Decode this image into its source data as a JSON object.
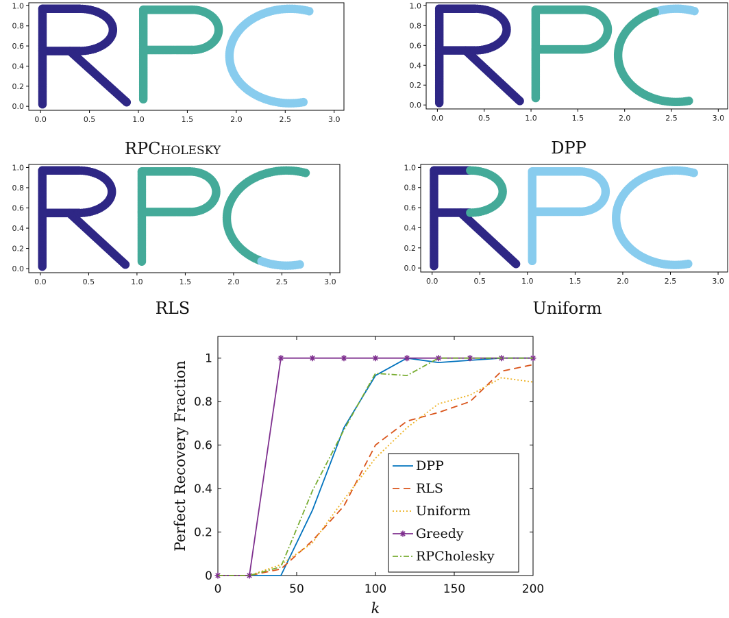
{
  "colors": {
    "cluster1": "#2e2785",
    "cluster2": "#44aa99",
    "cluster3": "#88ccee",
    "axis": "#000000"
  },
  "chart_data": [
    {
      "type": "scatter",
      "id": "rpcholesky",
      "title": "RPCholesky",
      "xlim": [
        -0.12,
        3.1
      ],
      "ylim": [
        -0.04,
        1.03
      ],
      "xticks": [
        "0.0",
        "0.5",
        "1.0",
        "1.5",
        "2.0",
        "2.5",
        "3.0"
      ],
      "yticks": [
        "0.0",
        "0.2",
        "0.4",
        "0.6",
        "0.8",
        "1.0"
      ],
      "assignment": {
        "R": "cluster1",
        "P": "cluster2",
        "C": "cluster3",
        "P_split_y": null,
        "C_split_t": null
      }
    },
    {
      "type": "scatter",
      "id": "dpp",
      "title": "DPP",
      "xlim": [
        -0.12,
        3.1
      ],
      "ylim": [
        -0.04,
        1.03
      ],
      "xticks": [
        "0.0",
        "0.5",
        "1.0",
        "1.5",
        "2.0",
        "2.5",
        "3.0"
      ],
      "yticks": [
        "0.0",
        "0.2",
        "0.4",
        "0.6",
        "0.8",
        "1.0"
      ],
      "assignment": {
        "R": "cluster1",
        "P": "cluster2",
        "C": "cluster2",
        "P_split_y": null,
        "C_split_t": 0.18,
        "C_split_color": "cluster3"
      }
    },
    {
      "type": "scatter",
      "id": "rls",
      "title": "RLS",
      "xlim": [
        -0.12,
        3.1
      ],
      "ylim": [
        -0.04,
        1.03
      ],
      "xticks": [
        "0.0",
        "0.5",
        "1.0",
        "1.5",
        "2.0",
        "2.5",
        "3.0"
      ],
      "yticks": [
        "0.0",
        "0.2",
        "0.4",
        "0.6",
        "0.8",
        "1.0"
      ],
      "assignment": {
        "R": "cluster1",
        "P": "cluster2",
        "C": "cluster2",
        "P_split_y": null,
        "C_split_t": 0.82,
        "C_split_color": "cluster3",
        "C_split_from_end": true
      }
    },
    {
      "type": "scatter",
      "id": "uniform",
      "title": "Uniform",
      "xlim": [
        -0.12,
        3.1
      ],
      "ylim": [
        -0.04,
        1.03
      ],
      "xticks": [
        "0.0",
        "0.5",
        "1.0",
        "1.5",
        "2.0",
        "2.5",
        "3.0"
      ],
      "yticks": [
        "0.0",
        "0.2",
        "0.4",
        "0.6",
        "0.8",
        "1.0"
      ],
      "assignment": {
        "R": "cluster1",
        "P": "cluster3",
        "C": "cluster3",
        "R_bowl_color": "cluster2"
      }
    },
    {
      "type": "line",
      "id": "recovery",
      "xlabel": "k",
      "ylabel": "Perfect Recovery Fraction",
      "xlim": [
        0,
        200
      ],
      "ylim": [
        0,
        1.1
      ],
      "xticks": [
        "0",
        "50",
        "100",
        "150",
        "200"
      ],
      "yticks": [
        "0",
        "0.2",
        "0.4",
        "0.6",
        "0.8",
        "1"
      ],
      "legend": "bottom-right",
      "x": [
        0,
        20,
        40,
        60,
        80,
        100,
        120,
        140,
        160,
        180,
        200
      ],
      "series": [
        {
          "name": "DPP",
          "color": "#0072bd",
          "dash": "",
          "values": [
            0,
            0,
            0,
            0.3,
            0.68,
            0.92,
            1.0,
            0.98,
            0.99,
            1.0,
            1.0
          ]
        },
        {
          "name": "RLS",
          "color": "#d95319",
          "dash": "10,6",
          "values": [
            0,
            0,
            0.03,
            0.16,
            0.32,
            0.6,
            0.71,
            0.75,
            0.8,
            0.94,
            0.97
          ]
        },
        {
          "name": "Uniform",
          "color": "#edb120",
          "dash": "2,3",
          "values": [
            0,
            0,
            0.05,
            0.15,
            0.35,
            0.54,
            0.68,
            0.79,
            0.83,
            0.91,
            0.89
          ]
        },
        {
          "name": "Greedy",
          "color": "#7e2f8e",
          "dash": "",
          "marker": "star",
          "values": [
            0,
            0,
            1,
            1,
            1,
            1,
            1,
            1,
            1,
            1,
            1
          ]
        },
        {
          "name": "RPCholesky",
          "color": "#77ac30",
          "dash": "8,3,2,3",
          "values": [
            0,
            0,
            0.04,
            0.39,
            0.67,
            0.93,
            0.92,
            1.0,
            1.0,
            1.0,
            1.0
          ]
        }
      ]
    }
  ]
}
